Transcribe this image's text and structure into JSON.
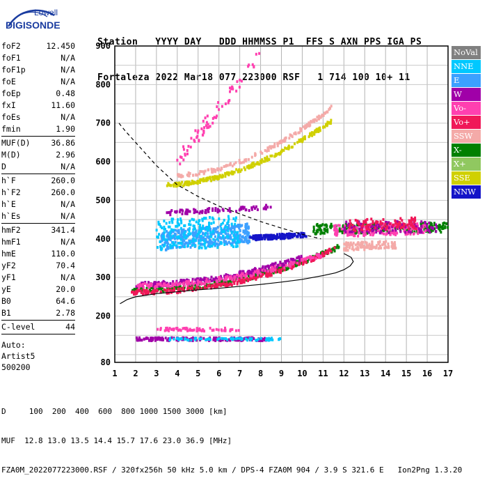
{
  "logo": {
    "line1": "Lowell",
    "line2": "DIGISONDE"
  },
  "header": {
    "labels": "Station   YYYY DAY   DDD HHMMSS P1  FFS S AXN PPS IGA PS",
    "values": "Fortaleza 2022 Mar18 077 223000 RSF   1 714 100 10+ 11"
  },
  "params": {
    "group1": [
      {
        "name": "foF2",
        "value": "12.450"
      },
      {
        "name": "foF1",
        "value": "N/A"
      },
      {
        "name": "foF1p",
        "value": "N/A"
      },
      {
        "name": "foE",
        "value": "N/A"
      },
      {
        "name": "foEp",
        "value": "0.48"
      },
      {
        "name": "fxI",
        "value": "11.60"
      },
      {
        "name": "foEs",
        "value": "N/A"
      },
      {
        "name": "fmin",
        "value": "1.90"
      }
    ],
    "group2": [
      {
        "name": "MUF(D)",
        "value": "36.86"
      },
      {
        "name": "M(D)",
        "value": "2.96"
      },
      {
        "name": "D",
        "value": "N/A"
      }
    ],
    "group3": [
      {
        "name": "h`F",
        "value": "260.0"
      },
      {
        "name": "h`F2",
        "value": "260.0"
      },
      {
        "name": "h`E",
        "value": "N/A"
      },
      {
        "name": "h`Es",
        "value": "N/A"
      }
    ],
    "group4": [
      {
        "name": "hmF2",
        "value": "341.4"
      },
      {
        "name": "hmF1",
        "value": "N/A"
      },
      {
        "name": "hmE",
        "value": "110.0"
      },
      {
        "name": "yF2",
        "value": "70.4"
      },
      {
        "name": "yF1",
        "value": "N/A"
      },
      {
        "name": "yE",
        "value": "20.0"
      },
      {
        "name": "B0",
        "value": "64.6"
      },
      {
        "name": "B1",
        "value": "2.78"
      }
    ],
    "group5": [
      {
        "name": "C-level",
        "value": "44"
      }
    ],
    "autoscaling": [
      "Auto:",
      "Artist5",
      "500200"
    ]
  },
  "legend": [
    {
      "label": "NoVal",
      "color": "#808080"
    },
    {
      "label": "NNE",
      "color": "#00c8ff"
    },
    {
      "label": "E",
      "color": "#3ca0ff"
    },
    {
      "label": "W",
      "color": "#a000a8"
    },
    {
      "label": "Vo-",
      "color": "#ff40b0"
    },
    {
      "label": "Vo+",
      "color": "#f01858"
    },
    {
      "label": "SSW",
      "color": "#f4aaa8"
    },
    {
      "label": "X-",
      "color": "#008000"
    },
    {
      "label": "X+",
      "color": "#90c860"
    },
    {
      "label": "SSE",
      "color": "#d0d000"
    },
    {
      "label": "NNW",
      "color": "#1414c8"
    }
  ],
  "footer": {
    "line1": "D     100  200  400  600  800 1000 1500 3000 [km]",
    "line2": "MUF  12.8 13.0 13.5 14.4 15.7 17.6 23.0 36.9 [MHz]",
    "line3": "FZA0M_2022077223000.RSF / 320fx256h 50 kHz 5.0 km / DPS-4 FZA0M 904 / 3.9 S 321.6 E   Ion2Png 1.3.20"
  },
  "chart_data": {
    "type": "scatter",
    "title": "",
    "xlabel": "",
    "ylabel": "",
    "xlim": [
      1,
      17
    ],
    "ylim": [
      80,
      900
    ],
    "x_ticks": [
      1,
      2,
      3,
      4,
      5,
      6,
      7,
      8,
      9,
      10,
      11,
      12,
      13,
      14,
      15,
      16,
      17
    ],
    "y_ticks": [
      80,
      200,
      300,
      400,
      500,
      600,
      700,
      800,
      900
    ],
    "grid": true,
    "legend_position": "right",
    "clusters": [
      {
        "series": "X-",
        "x_range": [
          1.8,
          11.8
        ],
        "y_start": 268,
        "y_end": 380,
        "rise": 2.2,
        "n": 320
      },
      {
        "series": "Vo+",
        "x_range": [
          1.8,
          11.6
        ],
        "y_start": 262,
        "y_end": 375,
        "rise": 2.2,
        "n": 260
      },
      {
        "series": "W",
        "x_range": [
          2.0,
          10.0
        ],
        "y_start": 282,
        "y_end": 352,
        "rise": 2.0,
        "n": 220
      },
      {
        "series": "Vo-",
        "x_range": [
          2.0,
          11.0
        ],
        "y_start": 278,
        "y_end": 360,
        "rise": 2.0,
        "n": 180
      },
      {
        "series": "E",
        "x_range": [
          3.2,
          7.5
        ],
        "y_start": 395,
        "y_end": 415,
        "rise": 1.0,
        "spread": 50,
        "n": 380
      },
      {
        "series": "NNE",
        "x_range": [
          3.0,
          7.0
        ],
        "y_start": 410,
        "y_end": 420,
        "rise": 1.0,
        "spread": 80,
        "n": 200
      },
      {
        "series": "NNW",
        "x_range": [
          7.5,
          10.2
        ],
        "y_start": 402,
        "y_end": 410,
        "rise": 1.0,
        "spread": 12,
        "n": 150
      },
      {
        "series": "SSE",
        "x_range": [
          3.5,
          11.4
        ],
        "y_start": 540,
        "y_end": 705,
        "rise": 1.8,
        "spread": 10,
        "n": 240
      },
      {
        "series": "SSW",
        "x_range": [
          4.0,
          11.4
        ],
        "y_start": 565,
        "y_end": 740,
        "rise": 1.8,
        "spread": 10,
        "n": 170
      },
      {
        "series": "W",
        "x_range": [
          3.5,
          8.5
        ],
        "y_start": 468,
        "y_end": 482,
        "rise": 1.0,
        "spread": 12,
        "n": 80
      },
      {
        "series": "X-",
        "x_range": [
          10.5,
          17.0
        ],
        "y_start": 425,
        "y_end": 430,
        "rise": 1.0,
        "spread": 25,
        "n": 260
      },
      {
        "series": "Vo-",
        "x_range": [
          11.5,
          16.0
        ],
        "y_start": 420,
        "y_end": 428,
        "rise": 1.0,
        "spread": 30,
        "n": 180
      },
      {
        "series": "SSW",
        "x_range": [
          12.0,
          14.5
        ],
        "y_start": 380,
        "y_end": 385,
        "rise": 1.0,
        "spread": 20,
        "n": 120
      },
      {
        "series": "W",
        "x_range": [
          12.0,
          16.5
        ],
        "y_start": 430,
        "y_end": 430,
        "rise": 1.0,
        "spread": 30,
        "n": 110
      },
      {
        "series": "Vo+",
        "x_range": [
          12.2,
          15.5
        ],
        "y_start": 435,
        "y_end": 440,
        "rise": 1.0,
        "spread": 30,
        "n": 90
      },
      {
        "series": "W",
        "x_range": [
          2.0,
          8.5
        ],
        "y_start": 140,
        "y_end": 140,
        "rise": 1.0,
        "spread": 8,
        "n": 150
      },
      {
        "series": "Vo-",
        "x_range": [
          3.0,
          7.0
        ],
        "y_start": 165,
        "y_end": 165,
        "rise": 1.0,
        "spread": 8,
        "n": 60
      },
      {
        "series": "NNE",
        "x_range": [
          3.5,
          9.0
        ],
        "y_start": 140,
        "y_end": 140,
        "rise": 1.0,
        "spread": 6,
        "n": 70
      },
      {
        "series": "Vo-",
        "x_range": [
          4.0,
          8.0
        ],
        "y_start": 600,
        "y_end": 880,
        "rise": 1.0,
        "spread": 40,
        "n": 70
      }
    ],
    "profile": {
      "x": [
        1.25,
        1.6,
        2.0,
        3.0,
        4.0,
        5.0,
        6.0,
        7.0,
        8.0,
        9.0,
        10.0,
        11.0,
        11.6,
        12.0,
        12.3,
        12.45,
        12.35,
        12.0
      ],
      "y": [
        232,
        243,
        250,
        258,
        263,
        268,
        272,
        277,
        282,
        288,
        295,
        305,
        312,
        320,
        330,
        341,
        352,
        362
      ]
    },
    "muf_curve": {
      "x": [
        1.2,
        1.5,
        2.0,
        2.5,
        3.0,
        4.0,
        5.0,
        6.0,
        7.0,
        8.0,
        9.0,
        10.0,
        10.9
      ],
      "y": [
        700,
        680,
        650,
        620,
        590,
        540,
        510,
        485,
        465,
        445,
        428,
        412,
        400
      ]
    }
  }
}
